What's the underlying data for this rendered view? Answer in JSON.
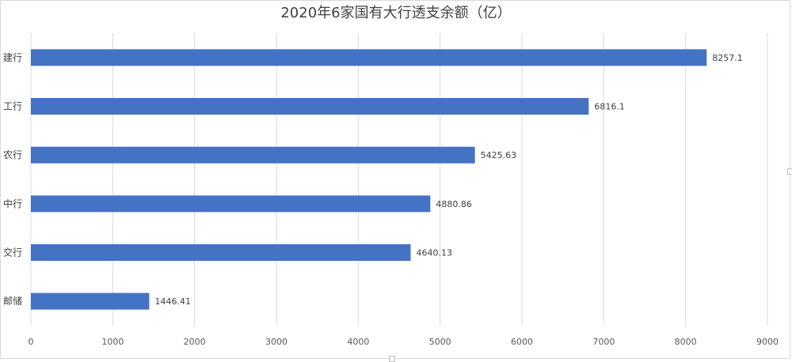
{
  "chart_data": {
    "type": "bar",
    "orientation": "horizontal",
    "title": "2020年6家国有大行透支余额（亿）",
    "categories": [
      "建行",
      "工行",
      "农行",
      "中行",
      "交行",
      "邮储"
    ],
    "values": [
      8257.1,
      6816.1,
      5425.63,
      4880.86,
      4640.13,
      1446.41
    ],
    "value_labels": [
      "8257.1",
      "6816.1",
      "5425.63",
      "4880.86",
      "4640.13",
      "1446.41"
    ],
    "xlim": [
      0,
      9000
    ],
    "xticks": [
      0,
      1000,
      2000,
      3000,
      4000,
      5000,
      6000,
      7000,
      8000,
      9000
    ],
    "grid": true,
    "legend": "none",
    "bar_color": "#4472c4",
    "grid_color": "#d9d9d9"
  }
}
